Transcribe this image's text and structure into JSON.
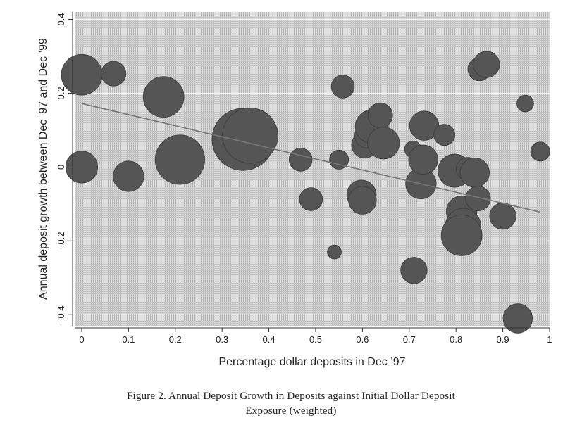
{
  "caption": {
    "line1": "Figure 2. Annual Deposit Growth in Deposits against Initial Dollar Deposit",
    "line2": "Exposure (weighted)"
  },
  "chart_data": {
    "type": "scatter",
    "weighted": true,
    "xlabel": "Percentage dollar deposits in Dec ’97",
    "ylabel": "Annual deposit growth between Dec ’97 and Dec ’99",
    "xlim": [
      -0.015,
      1.0
    ],
    "ylim": [
      -0.43,
      0.42
    ],
    "x_ticks": [
      0,
      0.1,
      0.2,
      0.3,
      0.4,
      0.5,
      0.6,
      0.7,
      0.8,
      0.9,
      1
    ],
    "x_tick_labels": [
      "0",
      "0.1",
      "0.2",
      "0.3",
      "0.4",
      "0.5",
      "0.6",
      "0.7",
      "0.8",
      "0.9",
      "1"
    ],
    "y_ticks": [
      -0.4,
      -0.2,
      0,
      0.2,
      0.4
    ],
    "y_tick_labels": [
      "−0.4",
      "−0.2",
      "0",
      "0.2",
      "0.4"
    ],
    "grid": "horizontal",
    "colors": {
      "background": "#d4d4d4",
      "marker": "#555555",
      "fit_line": "#777777"
    },
    "fit_line": {
      "x": [
        0,
        0.98
      ],
      "y": [
        0.172,
        -0.122
      ]
    },
    "points": [
      {
        "x": 0.0,
        "y": 0.25,
        "w": 20
      },
      {
        "x": 0.0,
        "y": 0.0,
        "w": 12
      },
      {
        "x": 0.068,
        "y": 0.253,
        "w": 7
      },
      {
        "x": 0.1,
        "y": -0.025,
        "w": 11
      },
      {
        "x": 0.175,
        "y": 0.19,
        "w": 20
      },
      {
        "x": 0.21,
        "y": 0.02,
        "w": 30
      },
      {
        "x": 0.345,
        "y": 0.075,
        "w": 48
      },
      {
        "x": 0.36,
        "y": 0.085,
        "w": 38
      },
      {
        "x": 0.468,
        "y": 0.02,
        "w": 6
      },
      {
        "x": 0.49,
        "y": -0.087,
        "w": 6
      },
      {
        "x": 0.54,
        "y": -0.23,
        "w": 2
      },
      {
        "x": 0.55,
        "y": 0.02,
        "w": 4
      },
      {
        "x": 0.558,
        "y": 0.218,
        "w": 6
      },
      {
        "x": 0.598,
        "y": -0.075,
        "w": 10
      },
      {
        "x": 0.6,
        "y": -0.09,
        "w": 9
      },
      {
        "x": 0.605,
        "y": 0.06,
        "w": 8
      },
      {
        "x": 0.61,
        "y": 0.085,
        "w": 7
      },
      {
        "x": 0.62,
        "y": 0.11,
        "w": 13
      },
      {
        "x": 0.638,
        "y": 0.14,
        "w": 7
      },
      {
        "x": 0.645,
        "y": 0.065,
        "w": 12
      },
      {
        "x": 0.708,
        "y": 0.048,
        "w": 3
      },
      {
        "x": 0.71,
        "y": -0.28,
        "w": 8
      },
      {
        "x": 0.725,
        "y": -0.045,
        "w": 11
      },
      {
        "x": 0.73,
        "y": 0.02,
        "w": 10
      },
      {
        "x": 0.732,
        "y": 0.112,
        "w": 10
      },
      {
        "x": 0.775,
        "y": 0.087,
        "w": 5
      },
      {
        "x": 0.797,
        "y": -0.01,
        "w": 13
      },
      {
        "x": 0.812,
        "y": -0.12,
        "w": 11
      },
      {
        "x": 0.815,
        "y": -0.16,
        "w": 15
      },
      {
        "x": 0.812,
        "y": -0.185,
        "w": 20
      },
      {
        "x": 0.825,
        "y": -0.005,
        "w": 6
      },
      {
        "x": 0.84,
        "y": -0.015,
        "w": 10
      },
      {
        "x": 0.847,
        "y": -0.085,
        "w": 7
      },
      {
        "x": 0.85,
        "y": 0.265,
        "w": 6
      },
      {
        "x": 0.865,
        "y": 0.278,
        "w": 8
      },
      {
        "x": 0.9,
        "y": -0.133,
        "w": 8
      },
      {
        "x": 0.932,
        "y": -0.41,
        "w": 10
      },
      {
        "x": 0.948,
        "y": 0.172,
        "w": 3
      },
      {
        "x": 0.98,
        "y": 0.042,
        "w": 4
      }
    ]
  }
}
